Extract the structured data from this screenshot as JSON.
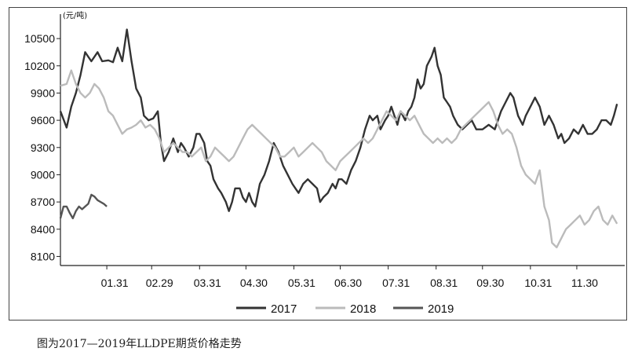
{
  "caption": "图为2017—2019年LLDPE期货价格走势",
  "chart_data": {
    "type": "line",
    "unit_label": "(元/吨)",
    "title": "",
    "xlabel": "",
    "ylabel": "",
    "ylim": [
      8000,
      10700
    ],
    "y_ticks": [
      8100,
      8400,
      8700,
      9000,
      9300,
      9600,
      9900,
      10200,
      10500
    ],
    "x_ticks": [
      "01.31",
      "02.29",
      "03.31",
      "04.30",
      "05.31",
      "06.30",
      "07.31",
      "08.31",
      "09.30",
      "10.31",
      "11.30"
    ],
    "x_day_range": [
      1,
      366
    ],
    "x_tick_days": [
      31,
      60,
      91,
      121,
      152,
      182,
      213,
      244,
      274,
      305,
      335
    ],
    "legend_position": "bottom",
    "series": [
      {
        "name": "2017",
        "color": "#333333",
        "points": [
          [
            1,
            9700
          ],
          [
            5,
            9520
          ],
          [
            8,
            9750
          ],
          [
            11,
            9900
          ],
          [
            14,
            10100
          ],
          [
            17,
            10350
          ],
          [
            21,
            10250
          ],
          [
            25,
            10350
          ],
          [
            28,
            10250
          ],
          [
            32,
            10260
          ],
          [
            35,
            10240
          ],
          [
            38,
            10400
          ],
          [
            41,
            10250
          ],
          [
            44,
            10600
          ],
          [
            47,
            10250
          ],
          [
            50,
            9950
          ],
          [
            53,
            9850
          ],
          [
            55,
            9650
          ],
          [
            58,
            9600
          ],
          [
            61,
            9620
          ],
          [
            64,
            9700
          ],
          [
            66,
            9350
          ],
          [
            68,
            9150
          ],
          [
            71,
            9250
          ],
          [
            74,
            9400
          ],
          [
            77,
            9250
          ],
          [
            79,
            9350
          ],
          [
            81,
            9300
          ],
          [
            84,
            9200
          ],
          [
            87,
            9300
          ],
          [
            89,
            9450
          ],
          [
            91,
            9450
          ],
          [
            94,
            9350
          ],
          [
            96,
            9150
          ],
          [
            98,
            9100
          ],
          [
            100,
            8950
          ],
          [
            103,
            8850
          ],
          [
            105,
            8800
          ],
          [
            108,
            8700
          ],
          [
            110,
            8600
          ],
          [
            112,
            8700
          ],
          [
            114,
            8850
          ],
          [
            117,
            8850
          ],
          [
            119,
            8750
          ],
          [
            121,
            8700
          ],
          [
            123,
            8800
          ],
          [
            125,
            8700
          ],
          [
            127,
            8650
          ],
          [
            130,
            8900
          ],
          [
            133,
            9000
          ],
          [
            136,
            9150
          ],
          [
            139,
            9350
          ],
          [
            142,
            9250
          ],
          [
            145,
            9100
          ],
          [
            148,
            9000
          ],
          [
            151,
            8900
          ],
          [
            153,
            8850
          ],
          [
            155,
            8800
          ],
          [
            158,
            8900
          ],
          [
            161,
            8950
          ],
          [
            164,
            8900
          ],
          [
            167,
            8850
          ],
          [
            169,
            8700
          ],
          [
            171,
            8750
          ],
          [
            174,
            8800
          ],
          [
            177,
            8900
          ],
          [
            179,
            8850
          ],
          [
            181,
            8950
          ],
          [
            183,
            8950
          ],
          [
            186,
            8900
          ],
          [
            189,
            9050
          ],
          [
            192,
            9150
          ],
          [
            195,
            9300
          ],
          [
            198,
            9500
          ],
          [
            201,
            9650
          ],
          [
            203,
            9600
          ],
          [
            206,
            9650
          ],
          [
            208,
            9500
          ],
          [
            211,
            9600
          ],
          [
            213,
            9650
          ],
          [
            215,
            9750
          ],
          [
            217,
            9650
          ],
          [
            219,
            9550
          ],
          [
            221,
            9700
          ],
          [
            224,
            9600
          ],
          [
            226,
            9700
          ],
          [
            228,
            9750
          ],
          [
            230,
            9850
          ],
          [
            232,
            10050
          ],
          [
            234,
            9950
          ],
          [
            236,
            10000
          ],
          [
            238,
            10200
          ],
          [
            241,
            10300
          ],
          [
            243,
            10400
          ],
          [
            245,
            10200
          ],
          [
            247,
            10100
          ],
          [
            249,
            9850
          ],
          [
            251,
            9800
          ],
          [
            253,
            9750
          ],
          [
            255,
            9650
          ],
          [
            258,
            9550
          ],
          [
            261,
            9500
          ],
          [
            264,
            9550
          ],
          [
            267,
            9600
          ],
          [
            270,
            9500
          ],
          [
            274,
            9500
          ],
          [
            278,
            9550
          ],
          [
            282,
            9500
          ],
          [
            286,
            9700
          ],
          [
            289,
            9800
          ],
          [
            292,
            9900
          ],
          [
            294,
            9850
          ],
          [
            297,
            9650
          ],
          [
            300,
            9550
          ],
          [
            302,
            9650
          ],
          [
            305,
            9750
          ],
          [
            308,
            9850
          ],
          [
            311,
            9750
          ],
          [
            314,
            9550
          ],
          [
            317,
            9650
          ],
          [
            320,
            9550
          ],
          [
            323,
            9400
          ],
          [
            325,
            9450
          ],
          [
            327,
            9350
          ],
          [
            330,
            9400
          ],
          [
            333,
            9500
          ],
          [
            336,
            9450
          ],
          [
            339,
            9550
          ],
          [
            342,
            9450
          ],
          [
            345,
            9450
          ],
          [
            348,
            9500
          ],
          [
            351,
            9600
          ],
          [
            354,
            9600
          ],
          [
            357,
            9550
          ],
          [
            359,
            9650
          ],
          [
            361,
            9780
          ]
        ]
      },
      {
        "name": "2018",
        "color": "#bbbbbb",
        "points": [
          [
            1,
            9980
          ],
          [
            5,
            10000
          ],
          [
            8,
            10150
          ],
          [
            11,
            10000
          ],
          [
            14,
            9900
          ],
          [
            17,
            9850
          ],
          [
            20,
            9900
          ],
          [
            23,
            10000
          ],
          [
            26,
            9950
          ],
          [
            29,
            9850
          ],
          [
            32,
            9700
          ],
          [
            35,
            9650
          ],
          [
            38,
            9550
          ],
          [
            41,
            9450
          ],
          [
            44,
            9500
          ],
          [
            47,
            9520
          ],
          [
            50,
            9550
          ],
          [
            53,
            9600
          ],
          [
            56,
            9520
          ],
          [
            59,
            9550
          ],
          [
            62,
            9500
          ],
          [
            65,
            9400
          ],
          [
            68,
            9250
          ],
          [
            71,
            9300
          ],
          [
            74,
            9350
          ],
          [
            77,
            9300
          ],
          [
            80,
            9250
          ],
          [
            83,
            9250
          ],
          [
            86,
            9200
          ],
          [
            89,
            9250
          ],
          [
            92,
            9300
          ],
          [
            95,
            9150
          ],
          [
            98,
            9200
          ],
          [
            101,
            9300
          ],
          [
            104,
            9250
          ],
          [
            107,
            9200
          ],
          [
            110,
            9150
          ],
          [
            113,
            9200
          ],
          [
            116,
            9300
          ],
          [
            119,
            9400
          ],
          [
            122,
            9500
          ],
          [
            125,
            9550
          ],
          [
            128,
            9500
          ],
          [
            131,
            9450
          ],
          [
            134,
            9400
          ],
          [
            137,
            9350
          ],
          [
            140,
            9300
          ],
          [
            143,
            9200
          ],
          [
            146,
            9200
          ],
          [
            149,
            9250
          ],
          [
            152,
            9300
          ],
          [
            155,
            9200
          ],
          [
            158,
            9250
          ],
          [
            161,
            9300
          ],
          [
            164,
            9350
          ],
          [
            167,
            9300
          ],
          [
            170,
            9250
          ],
          [
            173,
            9150
          ],
          [
            176,
            9100
          ],
          [
            179,
            9050
          ],
          [
            182,
            9150
          ],
          [
            185,
            9200
          ],
          [
            188,
            9250
          ],
          [
            191,
            9300
          ],
          [
            194,
            9350
          ],
          [
            197,
            9400
          ],
          [
            200,
            9350
          ],
          [
            203,
            9400
          ],
          [
            206,
            9500
          ],
          [
            209,
            9600
          ],
          [
            212,
            9700
          ],
          [
            215,
            9650
          ],
          [
            218,
            9600
          ],
          [
            221,
            9700
          ],
          [
            224,
            9650
          ],
          [
            227,
            9600
          ],
          [
            230,
            9650
          ],
          [
            233,
            9550
          ],
          [
            236,
            9450
          ],
          [
            239,
            9400
          ],
          [
            242,
            9350
          ],
          [
            245,
            9400
          ],
          [
            248,
            9350
          ],
          [
            251,
            9400
          ],
          [
            254,
            9350
          ],
          [
            257,
            9400
          ],
          [
            260,
            9500
          ],
          [
            263,
            9550
          ],
          [
            266,
            9600
          ],
          [
            269,
            9650
          ],
          [
            272,
            9700
          ],
          [
            275,
            9750
          ],
          [
            278,
            9800
          ],
          [
            281,
            9700
          ],
          [
            284,
            9550
          ],
          [
            287,
            9450
          ],
          [
            290,
            9500
          ],
          [
            293,
            9450
          ],
          [
            296,
            9300
          ],
          [
            299,
            9100
          ],
          [
            302,
            9000
          ],
          [
            305,
            8950
          ],
          [
            308,
            8900
          ],
          [
            311,
            9050
          ],
          [
            314,
            8650
          ],
          [
            317,
            8500
          ],
          [
            319,
            8250
          ],
          [
            322,
            8200
          ],
          [
            325,
            8300
          ],
          [
            328,
            8400
          ],
          [
            331,
            8450
          ],
          [
            334,
            8500
          ],
          [
            337,
            8550
          ],
          [
            340,
            8450
          ],
          [
            343,
            8500
          ],
          [
            346,
            8600
          ],
          [
            349,
            8650
          ],
          [
            352,
            8500
          ],
          [
            355,
            8450
          ],
          [
            358,
            8550
          ],
          [
            361,
            8460
          ]
        ]
      },
      {
        "name": "2019",
        "color": "#555555",
        "points": [
          [
            1,
            8520
          ],
          [
            3,
            8650
          ],
          [
            5,
            8650
          ],
          [
            7,
            8580
          ],
          [
            9,
            8520
          ],
          [
            11,
            8600
          ],
          [
            13,
            8650
          ],
          [
            15,
            8620
          ],
          [
            17,
            8650
          ],
          [
            19,
            8680
          ],
          [
            21,
            8780
          ],
          [
            23,
            8760
          ],
          [
            25,
            8720
          ],
          [
            27,
            8700
          ],
          [
            29,
            8680
          ],
          [
            31,
            8650
          ]
        ]
      }
    ]
  }
}
